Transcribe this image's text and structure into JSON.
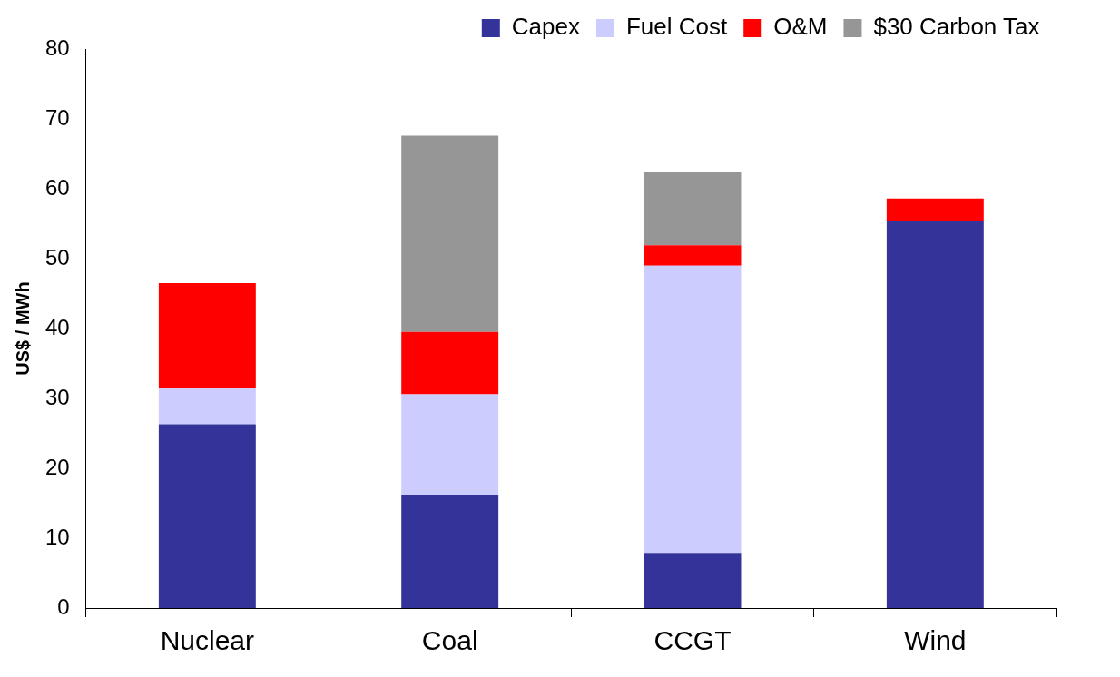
{
  "chart_data": {
    "type": "bar",
    "stacked": true,
    "ylabel": "US$ / MWh",
    "categories": [
      "Nuclear",
      "Coal",
      "CCGT",
      "Wind"
    ],
    "series": [
      {
        "name": "Capex",
        "color": "#333399",
        "values": [
          26.3,
          16.1,
          7.9,
          55.4
        ]
      },
      {
        "name": "Fuel Cost",
        "color": "#ccccff",
        "values": [
          5.1,
          14.5,
          41.1,
          0
        ]
      },
      {
        "name": "O&M",
        "color": "#ff0000",
        "values": [
          15.1,
          8.9,
          2.9,
          3.2
        ]
      },
      {
        "name": "$30 Carbon Tax",
        "color": "#969696",
        "values": [
          0,
          28.1,
          10.5,
          0
        ]
      }
    ],
    "ylim": [
      0,
      80
    ],
    "yticks": [
      0,
      10,
      20,
      30,
      40,
      50,
      60,
      70,
      80
    ],
    "grid": false,
    "legend": "top"
  }
}
